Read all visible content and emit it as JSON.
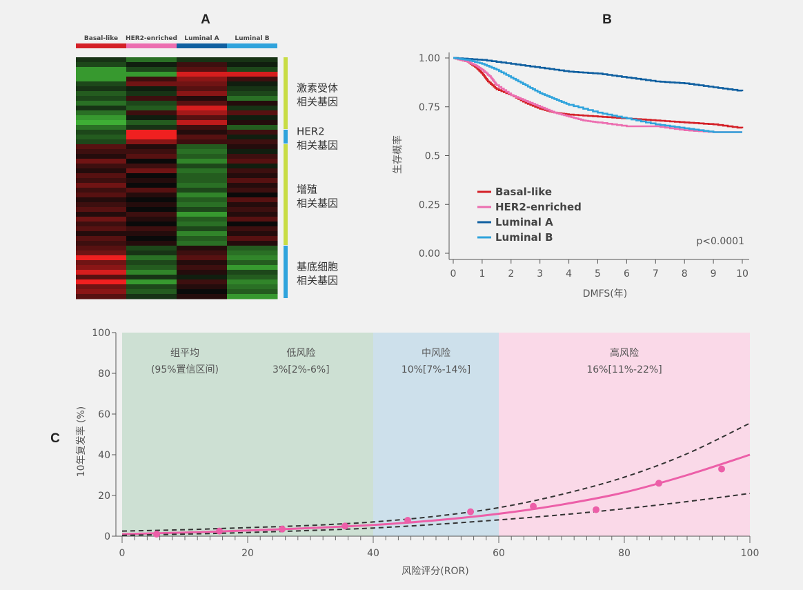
{
  "panels": {
    "a_label": "A",
    "b_label": "B",
    "c_label": "C"
  },
  "heatmap": {
    "subtypes": [
      {
        "name": "Basal-like",
        "color": "#d42027"
      },
      {
        "name": "HER2-enriched",
        "color": "#ec6eb0"
      },
      {
        "name": "Luminal A",
        "color": "#0f5fa0"
      },
      {
        "name": "Luminal B",
        "color": "#2fa3dc"
      }
    ],
    "gene_groups": [
      {
        "line1": "激素受体",
        "line2": "相关基因",
        "rows": 15,
        "color": "#c8dc44"
      },
      {
        "line1": "HER2",
        "line2": "相关基因",
        "rows": 3,
        "color": "#2fa3dc"
      },
      {
        "line1": "增殖",
        "line2": "相关基因",
        "rows": 21,
        "color": "#c8dc44"
      },
      {
        "line1": "基底细胞",
        "line2": "相关基因",
        "rows": 11,
        "color": "#2fa3dc"
      }
    ],
    "scale_colors": {
      "low": "#44c23a",
      "mid": "#0a0a0a",
      "high": "#f02020"
    },
    "column_patterns": [
      [
        -2,
        -5,
        -2,
        -2
      ],
      [
        -3,
        -1,
        2,
        -1
      ],
      [
        -7,
        -3,
        3,
        -3
      ],
      [
        -7,
        -7,
        8,
        8
      ],
      [
        -7,
        2,
        5,
        2
      ],
      [
        -3,
        4,
        4,
        -1
      ],
      [
        -2,
        -1,
        3,
        -2
      ],
      [
        -4,
        -2,
        5,
        -3
      ],
      [
        -3,
        2,
        1,
        -5
      ],
      [
        -5,
        -3,
        3,
        1
      ],
      [
        -2,
        -4,
        8,
        -2
      ],
      [
        -5,
        2,
        6,
        3
      ],
      [
        -7,
        -1,
        3,
        -1
      ],
      [
        -8,
        -4,
        7,
        1
      ],
      [
        -5,
        -2,
        2,
        -4
      ],
      [
        -3,
        9,
        1,
        2
      ],
      [
        -4,
        9,
        3,
        -1
      ],
      [
        -3,
        5,
        2,
        2
      ],
      [
        3,
        1,
        -4,
        1
      ],
      [
        2,
        2,
        -5,
        -1
      ],
      [
        1,
        3,
        -4,
        2
      ],
      [
        4,
        0,
        -6,
        3
      ],
      [
        2,
        2,
        -3,
        -1
      ],
      [
        1,
        4,
        -5,
        2
      ],
      [
        3,
        0,
        -4,
        1
      ],
      [
        2,
        1,
        -4,
        3
      ],
      [
        4,
        0,
        -5,
        1
      ],
      [
        2,
        3,
        -3,
        2
      ],
      [
        3,
        1,
        -6,
        0
      ],
      [
        1,
        0,
        -4,
        3
      ],
      [
        2,
        1,
        -5,
        1
      ],
      [
        3,
        0,
        -3,
        2
      ],
      [
        1,
        2,
        -7,
        1
      ],
      [
        4,
        1,
        -4,
        3
      ],
      [
        2,
        0,
        -5,
        0
      ],
      [
        3,
        2,
        -3,
        2
      ],
      [
        1,
        1,
        -6,
        1
      ],
      [
        3,
        0,
        -4,
        3
      ],
      [
        2,
        1,
        -5,
        1
      ],
      [
        3,
        -3,
        1,
        -4
      ],
      [
        4,
        -2,
        2,
        -5
      ],
      [
        9,
        -5,
        3,
        -6
      ],
      [
        4,
        -3,
        1,
        -4
      ],
      [
        5,
        -4,
        2,
        -7
      ],
      [
        8,
        -6,
        1,
        -3
      ],
      [
        3,
        -2,
        -1,
        -4
      ],
      [
        9,
        -7,
        2,
        -6
      ],
      [
        4,
        -3,
        1,
        -5
      ],
      [
        5,
        -4,
        0,
        -4
      ],
      [
        3,
        -2,
        1,
        -7
      ]
    ]
  },
  "chart_data": [
    {
      "type": "line",
      "panel": "B",
      "xlabel": "DMFS(年)",
      "ylabel": "生存概率",
      "xlim": [
        0,
        10
      ],
      "ylim": [
        0,
        1
      ],
      "xticks": [
        "0",
        "1",
        "2",
        "3",
        "4",
        "5",
        "6",
        "7",
        "8",
        "9",
        "10"
      ],
      "yticks": [
        "0.00",
        "0.25",
        "0.5",
        "0.75",
        "1.00"
      ],
      "annotation": "p<0.0001",
      "legend_position": "bottom-left",
      "series": [
        {
          "name": "Basal-like",
          "color": "#d42027",
          "x": [
            0,
            0.5,
            0.8,
            1.0,
            1.2,
            1.5,
            2.0,
            2.5,
            3.0,
            3.5,
            4.0,
            5.0,
            6.0,
            7.0,
            8.0,
            9.0,
            10.0
          ],
          "y": [
            1.0,
            0.98,
            0.95,
            0.92,
            0.88,
            0.84,
            0.81,
            0.77,
            0.74,
            0.72,
            0.71,
            0.7,
            0.69,
            0.68,
            0.67,
            0.66,
            0.64
          ]
        },
        {
          "name": "HER2-enriched",
          "color": "#ec6eb0",
          "x": [
            0,
            0.5,
            0.8,
            1.0,
            1.3,
            1.5,
            2.0,
            2.5,
            3.0,
            3.5,
            4.0,
            4.5,
            5.0,
            6.0,
            7.0,
            8.0,
            9.0,
            10.0
          ],
          "y": [
            1.0,
            0.98,
            0.96,
            0.94,
            0.9,
            0.86,
            0.81,
            0.78,
            0.75,
            0.72,
            0.7,
            0.68,
            0.67,
            0.65,
            0.65,
            0.63,
            0.62,
            0.62
          ]
        },
        {
          "name": "Luminal A",
          "color": "#0f5fa0",
          "x": [
            0,
            1,
            2,
            3,
            4,
            5,
            6,
            7,
            8,
            9,
            10
          ],
          "y": [
            1.0,
            0.99,
            0.97,
            0.95,
            0.93,
            0.92,
            0.9,
            0.88,
            0.87,
            0.85,
            0.83
          ]
        },
        {
          "name": "Luminal B",
          "color": "#2fa3dc",
          "x": [
            0,
            0.5,
            1.0,
            1.5,
            2.0,
            2.5,
            3.0,
            3.5,
            4.0,
            5.0,
            6.0,
            7.0,
            8.0,
            9.0,
            10.0
          ],
          "y": [
            1.0,
            0.99,
            0.97,
            0.94,
            0.9,
            0.86,
            0.82,
            0.79,
            0.76,
            0.72,
            0.69,
            0.66,
            0.64,
            0.62,
            0.62
          ]
        }
      ]
    },
    {
      "type": "line",
      "panel": "C",
      "xlabel": "风险评分(ROR)",
      "ylabel": "10年复发率 (%)",
      "xlim": [
        0,
        100
      ],
      "ylim": [
        0,
        100
      ],
      "xticks": [
        "0",
        "20",
        "40",
        "60",
        "80",
        "100"
      ],
      "yticks": [
        "0",
        "20",
        "40",
        "60",
        "80",
        "100"
      ],
      "zones": [
        {
          "from": 0,
          "to": 40,
          "color": "#cde0d3",
          "title": "",
          "line1": "组平均",
          "line2": "(95%置信区间)",
          "label_x": 10
        },
        {
          "from": 0,
          "to": 40,
          "color": "",
          "title": "",
          "line1": "低风险",
          "line2": "3%[2%-6%]",
          "label_x": 28.5
        },
        {
          "from": 40,
          "to": 60,
          "color": "#cde0eb",
          "title": "",
          "line1": "中风险",
          "line2": "10%[7%-14%]",
          "label_x": 50
        },
        {
          "from": 60,
          "to": 100,
          "color": "#fad9e8",
          "title": "",
          "line1": "高风险",
          "line2": "16%[11%-22%]",
          "label_x": 80
        }
      ],
      "series": [
        {
          "name": "",
          "style": "solid",
          "color": "#ec5fa8",
          "x": [
            0,
            10,
            20,
            30,
            40,
            50,
            60,
            70,
            80,
            90,
            100
          ],
          "y": [
            1.0,
            1.8,
            2.8,
            4.0,
            5.5,
            7.8,
            11.0,
            15.5,
            21.5,
            30.0,
            40.0
          ]
        },
        {
          "name": "",
          "style": "dashed",
          "color": "#333333",
          "x": [
            0,
            10,
            20,
            30,
            40,
            50,
            60,
            70,
            80,
            90,
            100
          ],
          "y": [
            2.5,
            3.2,
            4.2,
            5.3,
            7.0,
            9.8,
            14.0,
            20.5,
            29.0,
            40.5,
            55.5
          ]
        },
        {
          "name": "",
          "style": "dashed",
          "color": "#333333",
          "x": [
            0,
            10,
            20,
            30,
            40,
            50,
            60,
            70,
            80,
            90,
            100
          ],
          "y": [
            0.4,
            1.0,
            1.8,
            2.8,
            4.0,
            5.8,
            8.0,
            10.5,
            13.5,
            17.0,
            21.0
          ]
        }
      ],
      "points": {
        "color": "#ec5fa8",
        "x": [
          5.5,
          15.5,
          25.5,
          35.5,
          45.5,
          55.5,
          65.5,
          75.5,
          85.5,
          95.5
        ],
        "y": [
          1.0,
          2.5,
          3.5,
          5.0,
          7.8,
          12.0,
          14.7,
          13.0,
          26.0,
          33.0
        ]
      }
    }
  ]
}
